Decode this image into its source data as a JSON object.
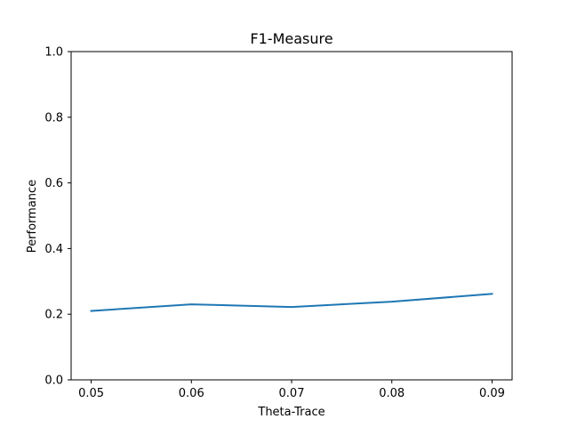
{
  "chart_data": {
    "type": "line",
    "title": "F1-Measure",
    "xlabel": "Theta-Trace",
    "ylabel": "Performance",
    "x": [
      0.05,
      0.06,
      0.07,
      0.08,
      0.09
    ],
    "x_tick_labels": [
      "0.05",
      "0.06",
      "0.07",
      "0.08",
      "0.09"
    ],
    "y_ticks": [
      0.0,
      0.2,
      0.4,
      0.6,
      0.8,
      1.0
    ],
    "y_tick_labels": [
      "0.0",
      "0.2",
      "0.4",
      "0.6",
      "0.8",
      "1.0"
    ],
    "xlim": [
      0.048,
      0.092
    ],
    "ylim": [
      0.0,
      1.0
    ],
    "grid": false,
    "series": [
      {
        "values": [
          0.21,
          0.23,
          0.222,
          0.238,
          0.262
        ],
        "color": "#1f77b4"
      }
    ]
  }
}
